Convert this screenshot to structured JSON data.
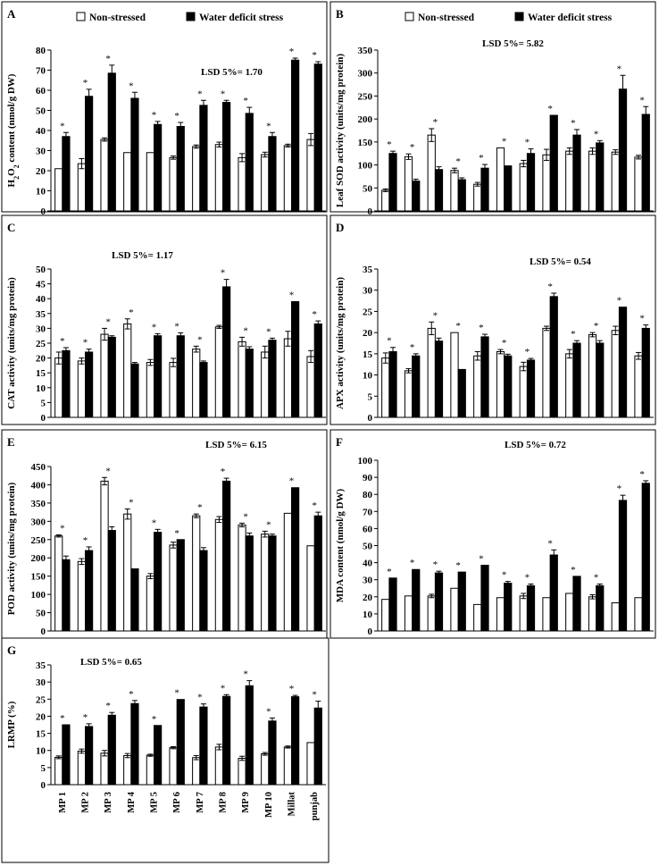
{
  "legend": {
    "non_stressed": "Non-stressed",
    "stressed": "Water deficit stress"
  },
  "colors": {
    "non_stressed": "#ffffff",
    "stressed": "#000000"
  },
  "categories": [
    "MP 1",
    "MP 2",
    "MP 3",
    "MP 4",
    "MP 5",
    "MP 6",
    "MP 7",
    "MP 8",
    "MP 9",
    "MP 10",
    "Millat",
    "punjab"
  ],
  "chart_data": [
    {
      "panel": "A",
      "type": "bar",
      "lsd": "LSD 5%= 1.70",
      "ylabel_parts": [
        "H",
        "2",
        "O",
        "2",
        " content (nmol/g DW)"
      ],
      "ylim": [
        0,
        80
      ],
      "ystep": 10,
      "series": [
        {
          "name": "Non-stressed",
          "values": [
            21,
            23.5,
            35.5,
            29,
            29,
            26.5,
            32,
            33,
            26.5,
            28,
            32.5,
            35.5
          ],
          "errors": [
            0,
            2.5,
            0.8,
            0,
            0,
            0.8,
            0.8,
            1.2,
            2,
            1.2,
            0.7,
            3
          ]
        },
        {
          "name": "Water deficit stress",
          "values": [
            37,
            57,
            68.5,
            56,
            43,
            42,
            52.5,
            54,
            48.5,
            37,
            75,
            73
          ],
          "errors": [
            2,
            3.5,
            4,
            3,
            1.5,
            2,
            2.5,
            1,
            3,
            2,
            1,
            1.2
          ]
        }
      ]
    },
    {
      "panel": "B",
      "type": "bar",
      "lsd": "LSD 5%= 5.82",
      "ylabel": "Leaf SOD activity (units/mg protein)",
      "ylim": [
        0,
        350
      ],
      "ystep": 50,
      "series": [
        {
          "name": "Non-stressed",
          "values": [
            45,
            118,
            165,
            88,
            58,
            137,
            103,
            122,
            130,
            130,
            128,
            117
          ],
          "errors": [
            3,
            6,
            14,
            5,
            4,
            0,
            7,
            12,
            7,
            7,
            5,
            4
          ]
        },
        {
          "name": "Water deficit stress",
          "values": [
            125,
            65,
            90,
            68,
            93,
            98,
            125,
            208,
            165,
            148,
            265,
            210
          ],
          "errors": [
            5,
            4,
            6,
            4,
            8,
            0,
            10,
            0,
            12,
            5,
            30,
            17
          ]
        }
      ]
    },
    {
      "panel": "C",
      "type": "bar",
      "lsd": "LSD 5%= 1.17",
      "ylabel": "CAT activity (units/mg protein)",
      "ylim": [
        0,
        50
      ],
      "ystep": 5,
      "series": [
        {
          "name": "Non-stressed",
          "values": [
            20,
            19,
            28,
            31.5,
            18.5,
            18.5,
            23,
            30.5,
            25.5,
            22,
            26.5,
            20.5
          ],
          "errors": [
            2,
            1,
            2,
            1.7,
            1,
            1.4,
            1,
            0.5,
            1.5,
            2,
            2.5,
            2
          ]
        },
        {
          "name": "Water deficit stress",
          "values": [
            22.5,
            22,
            27,
            18,
            27.5,
            27.5,
            18.5,
            44,
            23,
            26,
            39,
            31.5
          ],
          "errors": [
            1,
            1,
            0.5,
            0.5,
            0.7,
            1,
            0.5,
            2.5,
            0.8,
            0.7,
            0,
            1
          ]
        }
      ]
    },
    {
      "panel": "D",
      "type": "bar",
      "lsd": "LSD 5%= 0.54",
      "ylabel": "APX activity (units/mg protein)",
      "ylim": [
        0,
        35
      ],
      "ystep": 5,
      "series": [
        {
          "name": "Non-stressed",
          "values": [
            14,
            11,
            21,
            20,
            14.5,
            15.5,
            12,
            21,
            15,
            19.5,
            20.5,
            14.5
          ],
          "errors": [
            1.2,
            0.5,
            1.5,
            0,
            1,
            0.5,
            1,
            0.5,
            1,
            0.5,
            1,
            0.8
          ]
        },
        {
          "name": "Water deficit stress",
          "values": [
            15.5,
            14.5,
            18,
            11.3,
            19,
            14.5,
            13.5,
            28.5,
            17.5,
            17.5,
            26,
            21
          ],
          "errors": [
            1,
            0.5,
            0.7,
            0,
            0.6,
            0.4,
            0.4,
            0.8,
            0.6,
            0.6,
            0,
            0.8
          ]
        }
      ]
    },
    {
      "panel": "E",
      "type": "bar",
      "lsd": "LSD 5%= 6.15",
      "ylabel": "POD activity (units/mg protein)",
      "ylim": [
        0,
        450
      ],
      "ystep": 50,
      "series": [
        {
          "name": "Non-stressed",
          "values": [
            260,
            190,
            410,
            320,
            150,
            235,
            315,
            305,
            290,
            265,
            322,
            233
          ],
          "errors": [
            3,
            8,
            10,
            14,
            7,
            8,
            5,
            8,
            5,
            8,
            0,
            0
          ]
        },
        {
          "name": "Water deficit stress",
          "values": [
            195,
            220,
            275,
            170,
            270,
            250,
            220,
            410,
            260,
            260,
            392,
            315
          ],
          "errors": [
            10,
            10,
            10,
            0,
            8,
            0,
            8,
            8,
            8,
            5,
            0,
            10
          ]
        }
      ]
    },
    {
      "panel": "F",
      "type": "bar",
      "lsd": "LSD 5%= 0.72",
      "ylabel": "MDA content (nmol/g DW)",
      "ylim": [
        0,
        100
      ],
      "ystep": 10,
      "series": [
        {
          "name": "Non-stressed",
          "values": [
            18.5,
            20.5,
            20.5,
            25,
            15.5,
            19.5,
            20.5,
            19.5,
            22,
            20,
            16.5,
            19.5
          ],
          "errors": [
            0,
            0,
            1,
            0,
            0,
            0,
            1.5,
            0,
            0,
            1.2,
            0,
            0
          ]
        },
        {
          "name": "Water deficit stress",
          "values": [
            31,
            36,
            34,
            34.5,
            38.5,
            28,
            26.5,
            44.5,
            32,
            26.5,
            76.5,
            86.5
          ],
          "errors": [
            0,
            0,
            1,
            0,
            0,
            1,
            1,
            3,
            0,
            1,
            3,
            1.5
          ]
        }
      ]
    },
    {
      "panel": "G",
      "type": "bar",
      "lsd": "LSD 5%= 0.65",
      "ylabel": "LRMP (%)",
      "ylim": [
        0,
        35
      ],
      "ystep": 5,
      "series": [
        {
          "name": "Non-stressed",
          "values": [
            8,
            9.8,
            9.2,
            8.5,
            8.6,
            10.8,
            7.9,
            11,
            7.7,
            9,
            11,
            12.3
          ],
          "errors": [
            0.4,
            0.6,
            0.8,
            0.6,
            0.3,
            0.3,
            0.6,
            0.8,
            0.6,
            0.4,
            0.3,
            0
          ]
        },
        {
          "name": "Water deficit stress",
          "values": [
            17.5,
            17,
            20.3,
            23.7,
            17.3,
            24.9,
            22.7,
            25.8,
            28.9,
            18.6,
            25.7,
            22.4
          ],
          "errors": [
            0,
            0.8,
            0.8,
            0.9,
            0,
            0,
            0.9,
            0.5,
            1.5,
            0.9,
            0.4,
            2
          ]
        }
      ]
    }
  ]
}
